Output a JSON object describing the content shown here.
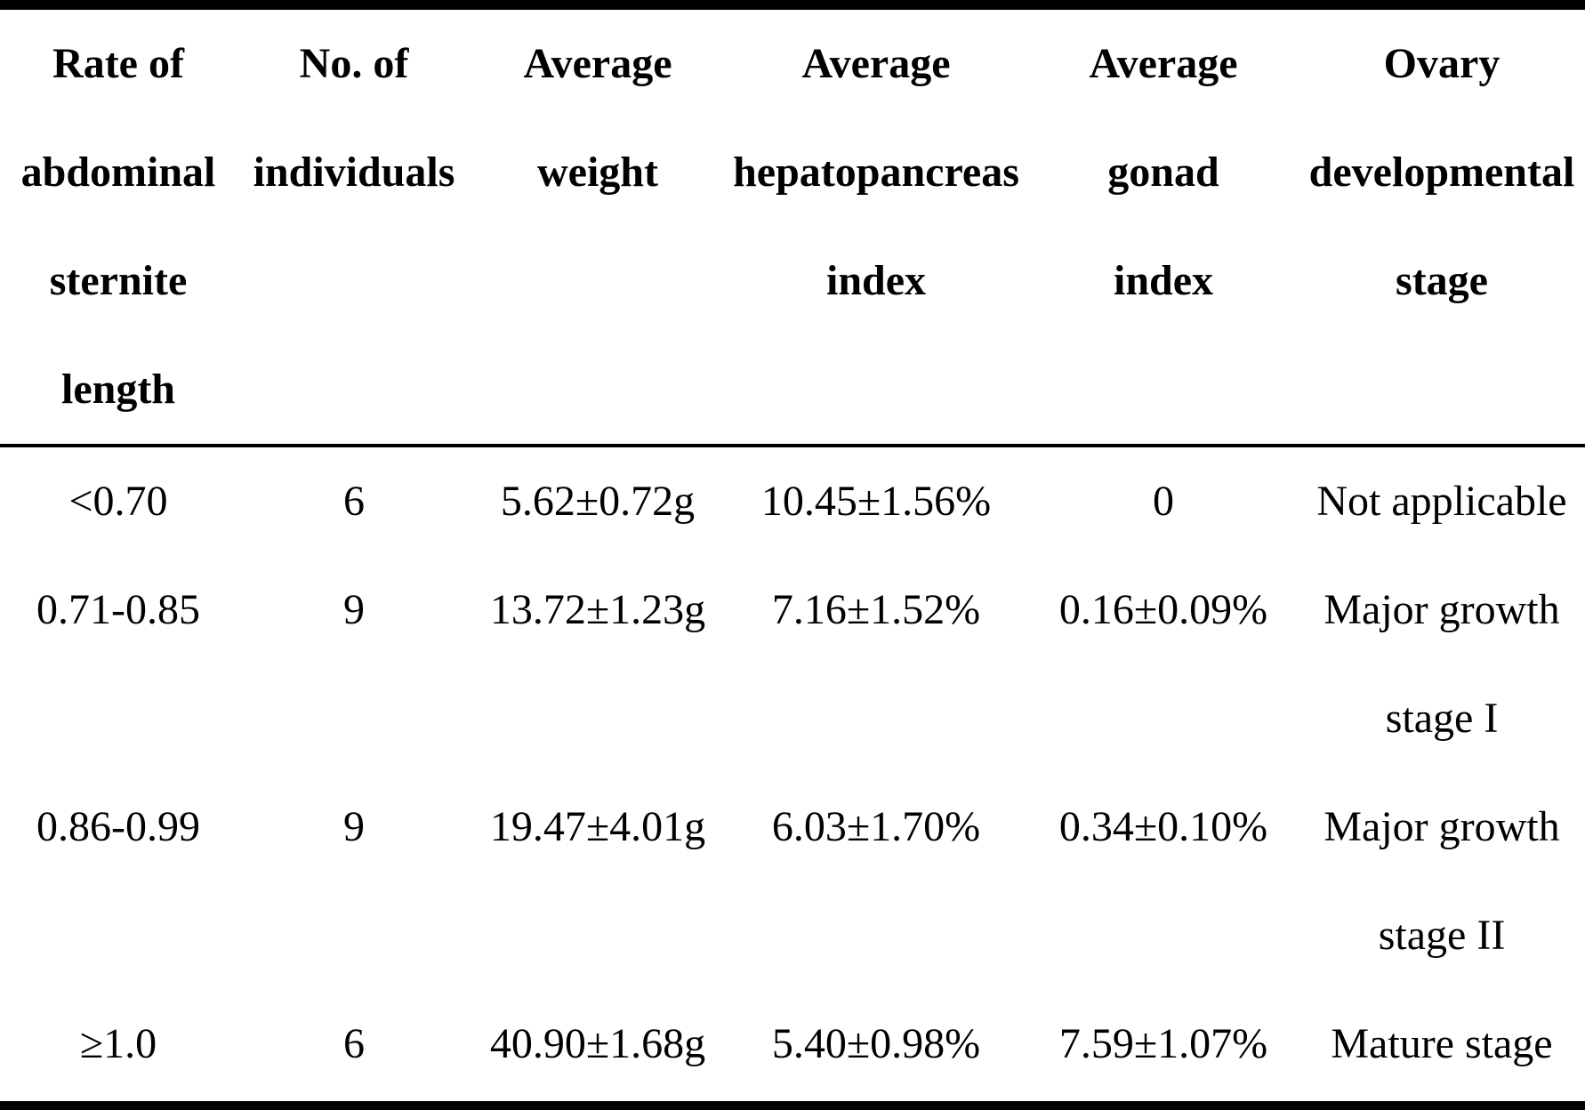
{
  "document": {
    "kind": "scientific-manuscript-table",
    "colors": {
      "background": "#ffffff",
      "text": "#000000",
      "rule": "#000000"
    }
  },
  "table": {
    "header": {
      "columns": [
        {
          "id": "rate",
          "label": "Rate of abdominal sternite length",
          "lines": [
            "Rate of",
            "abdominal",
            "sternite",
            "length"
          ]
        },
        {
          "id": "individuals",
          "label": "No. of individuals",
          "lines": [
            "No. of",
            "individuals"
          ]
        },
        {
          "id": "weight",
          "label": "Average weight",
          "lines": [
            "Average",
            "weight"
          ]
        },
        {
          "id": "hepatopancreas_index",
          "label": "Average hepatopancreas index",
          "lines": [
            "Average",
            "hepatopancreas",
            "index"
          ]
        },
        {
          "id": "gonad_index",
          "label": "Average gonad index",
          "lines": [
            "Average",
            "gonad",
            "index"
          ]
        },
        {
          "id": "ovary_stage",
          "label": "Ovary developmental stage",
          "lines": [
            "Ovary",
            "developmental",
            "stage"
          ]
        }
      ]
    },
    "rows": [
      {
        "rate": "<0.70",
        "individuals": "6",
        "weight": "5.62±0.72g",
        "hepatopancreas_index": "10.45±1.56%",
        "gonad_index": "0",
        "stage": "Not applicable",
        "stage_lines": [
          "Not applicable"
        ]
      },
      {
        "rate": "0.71-0.85",
        "individuals": "9",
        "weight": "13.72±1.23g",
        "hepatopancreas_index": "7.16±1.52%",
        "gonad_index": "0.16±0.09%",
        "stage": "Major growth stage I",
        "stage_lines": [
          "Major growth",
          "stage I"
        ]
      },
      {
        "rate": "0.86-0.99",
        "individuals": "9",
        "weight": "19.47±4.01g",
        "hepatopancreas_index": "6.03±1.70%",
        "gonad_index": "0.34±0.10%",
        "stage": "Major growth stage II",
        "stage_lines": [
          "Major growth",
          "stage II"
        ]
      },
      {
        "rate": "≥1.0",
        "individuals": "6",
        "weight": "40.90±1.68g",
        "hepatopancreas_index": "5.40±0.98%",
        "gonad_index": "7.59±1.07%",
        "stage": "Mature stage",
        "stage_lines": [
          "Mature stage"
        ]
      }
    ]
  }
}
